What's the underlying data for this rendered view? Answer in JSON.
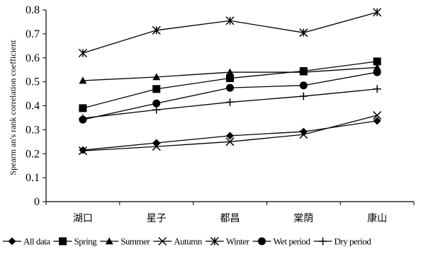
{
  "chart_data": {
    "type": "line",
    "xlabel": "",
    "ylabel": "Spearm an's rank correlation coefficient",
    "ylim": [
      0,
      0.8
    ],
    "yticks": [
      "0",
      "0.1",
      "0.2",
      "0.3",
      "0.4",
      "0.5",
      "0.6",
      "0.7",
      "0.8"
    ],
    "categories": [
      "湖口",
      "星子",
      "都昌",
      "棠荫",
      "康山"
    ],
    "grid": false,
    "legend_position": "bottom",
    "series": [
      {
        "name": "All data",
        "marker": "diamond",
        "values": [
          0.215,
          0.245,
          0.275,
          0.292,
          0.337
        ]
      },
      {
        "name": "Spring",
        "marker": "square",
        "values": [
          0.39,
          0.47,
          0.515,
          0.545,
          0.585
        ]
      },
      {
        "name": "Summer",
        "marker": "triangle",
        "values": [
          0.505,
          0.52,
          0.54,
          0.54,
          0.56
        ]
      },
      {
        "name": "Autumn",
        "marker": "x",
        "values": [
          0.212,
          0.23,
          0.25,
          0.28,
          0.36
        ]
      },
      {
        "name": "Winter",
        "marker": "star",
        "values": [
          0.62,
          0.715,
          0.755,
          0.705,
          0.79
        ]
      },
      {
        "name": "Wet period",
        "marker": "circle",
        "values": [
          0.342,
          0.41,
          0.475,
          0.485,
          0.54
        ]
      },
      {
        "name": "Dry period",
        "marker": "plus",
        "values": [
          0.348,
          0.383,
          0.415,
          0.44,
          0.47
        ]
      }
    ]
  }
}
